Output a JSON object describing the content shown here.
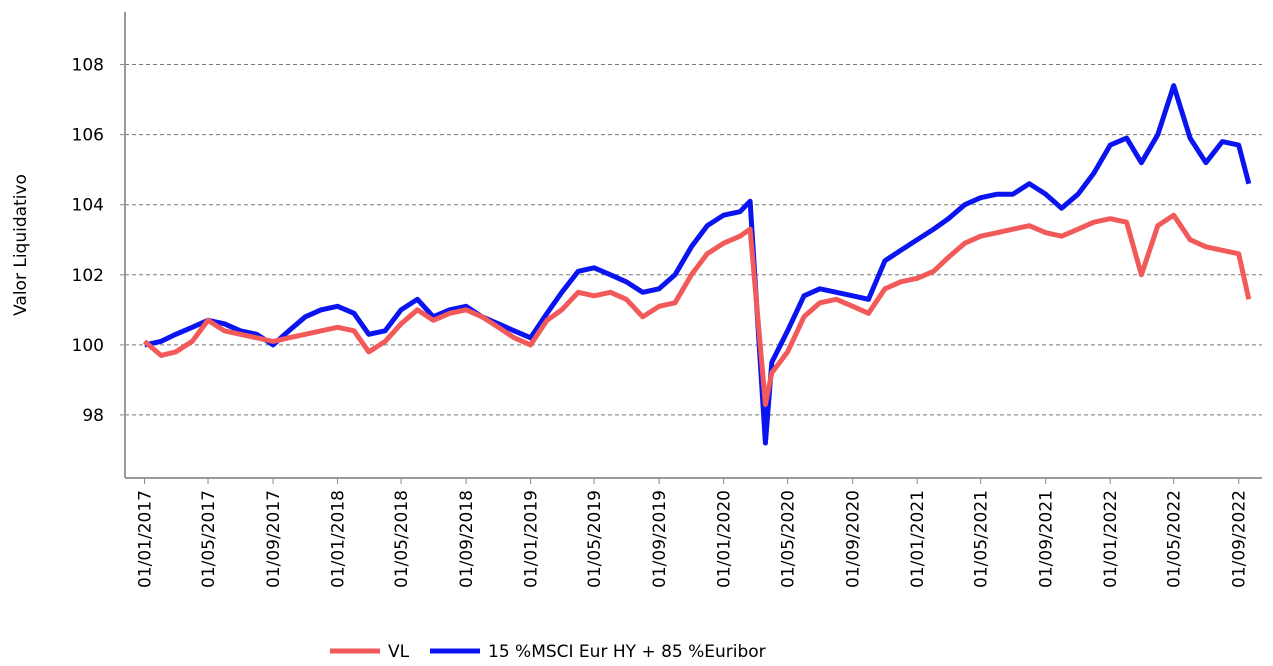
{
  "chart_data": {
    "type": "line",
    "y_label": "Valor Liquidativo",
    "x": [
      "01/01/2017",
      "01/02/2017",
      "01/03/2017",
      "01/04/2017",
      "01/05/2017",
      "01/06/2017",
      "01/07/2017",
      "01/08/2017",
      "01/09/2017",
      "01/10/2017",
      "01/11/2017",
      "01/12/2017",
      "01/01/2018",
      "01/02/2018",
      "01/03/2018",
      "01/04/2018",
      "01/05/2018",
      "01/06/2018",
      "01/07/2018",
      "01/08/2018",
      "01/09/2018",
      "01/10/2018",
      "01/11/2018",
      "01/12/2018",
      "01/01/2019",
      "01/02/2019",
      "01/03/2019",
      "01/04/2019",
      "01/05/2019",
      "01/06/2019",
      "01/07/2019",
      "01/08/2019",
      "01/09/2019",
      "01/10/2019",
      "01/11/2019",
      "01/12/2019",
      "01/01/2020",
      "01/02/2020",
      "20/02/2020",
      "20/03/2020",
      "01/04/2020",
      "01/05/2020",
      "01/06/2020",
      "01/07/2020",
      "01/08/2020",
      "01/09/2020",
      "01/10/2020",
      "01/11/2020",
      "01/12/2020",
      "01/01/2021",
      "01/02/2021",
      "01/03/2021",
      "01/04/2021",
      "01/05/2021",
      "01/06/2021",
      "01/07/2021",
      "01/08/2021",
      "01/09/2021",
      "01/10/2021",
      "01/11/2021",
      "01/12/2021",
      "01/01/2022",
      "01/02/2022",
      "01/03/2022",
      "01/04/2022",
      "01/05/2022",
      "01/06/2022",
      "01/07/2022",
      "01/08/2022",
      "01/09/2022",
      "20/09/2022"
    ],
    "series": [
      {
        "name": "VL",
        "color": "#f25a5a",
        "values": [
          100.1,
          99.7,
          99.8,
          100.1,
          100.7,
          100.4,
          100.3,
          100.2,
          100.1,
          100.2,
          100.3,
          100.4,
          100.5,
          100.4,
          99.8,
          100.1,
          100.6,
          101.0,
          100.7,
          100.9,
          101.0,
          100.8,
          100.5,
          100.2,
          100.0,
          100.7,
          101.0,
          101.5,
          101.4,
          101.5,
          101.3,
          100.8,
          101.1,
          101.2,
          102.0,
          102.6,
          102.9,
          103.1,
          103.3,
          98.3,
          99.2,
          99.8,
          100.8,
          101.2,
          101.3,
          101.1,
          100.9,
          101.6,
          101.8,
          101.9,
          102.1,
          102.5,
          102.9,
          103.1,
          103.2,
          103.3,
          103.4,
          103.2,
          103.1,
          103.3,
          103.5,
          103.6,
          103.5,
          102.0,
          103.4,
          103.7,
          103.0,
          102.8,
          102.7,
          102.6,
          101.3
        ]
      },
      {
        "name": "15 %MSCI Eur HY + 85 %Euribor",
        "color": "#0a14f0",
        "values": [
          100.0,
          100.1,
          100.3,
          100.5,
          100.7,
          100.6,
          100.4,
          100.3,
          100.0,
          100.4,
          100.8,
          101.0,
          101.1,
          100.9,
          100.3,
          100.4,
          101.0,
          101.3,
          100.8,
          101.0,
          101.1,
          100.8,
          100.6,
          100.4,
          100.2,
          100.9,
          101.5,
          102.1,
          102.2,
          102.0,
          101.8,
          101.5,
          101.6,
          102.0,
          102.8,
          103.4,
          103.7,
          103.8,
          104.1,
          97.2,
          99.5,
          100.4,
          101.4,
          101.6,
          101.5,
          101.4,
          101.3,
          102.4,
          102.7,
          103.0,
          103.3,
          103.6,
          104.0,
          104.2,
          104.3,
          104.3,
          104.6,
          104.3,
          103.9,
          104.3,
          104.9,
          105.7,
          105.9,
          105.2,
          106.0,
          107.4,
          105.9,
          105.2,
          105.8,
          105.7,
          104.6
        ]
      }
    ],
    "xlim": [
      "25/11/2016",
      "15/10/2022"
    ],
    "xticks": [
      "01/01/2017",
      "01/05/2017",
      "01/09/2017",
      "01/01/2018",
      "01/05/2018",
      "01/09/2018",
      "01/01/2019",
      "01/05/2019",
      "01/09/2019",
      "01/01/2020",
      "01/05/2020",
      "01/09/2020",
      "01/01/2021",
      "01/05/2021",
      "01/09/2021",
      "01/01/2022",
      "01/05/2022",
      "01/09/2022"
    ],
    "ylim": [
      96.2,
      109.5
    ],
    "yticks": [
      98,
      100,
      102,
      104,
      106,
      108
    ],
    "grid": true
  }
}
